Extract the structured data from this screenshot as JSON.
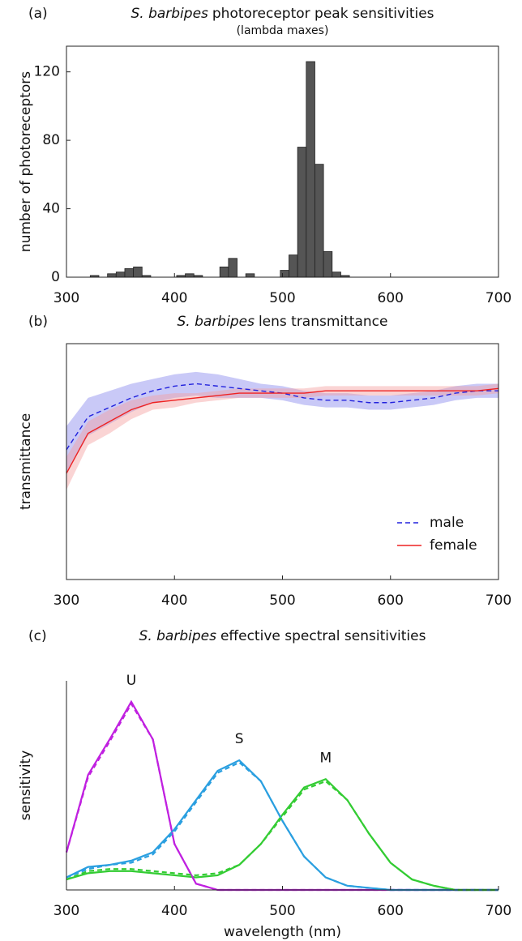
{
  "chart_data": [
    {
      "type": "histogram",
      "panel": "(a)",
      "title_italic": "S. barbipes",
      "title": "photoreceptor peak sensitivities",
      "subtitle": "(lambda maxes)",
      "ylabel": "number of photoreceptors",
      "color": "#555555",
      "bins": [
        322,
        330,
        338,
        346,
        354,
        362,
        370,
        378,
        386,
        394,
        402,
        410,
        418,
        426,
        434,
        442,
        450,
        458,
        466,
        474,
        482,
        490,
        498,
        506,
        514,
        522,
        530,
        538,
        546,
        554,
        562
      ],
      "counts": [
        1,
        0,
        2,
        3,
        5,
        6,
        1,
        0,
        0,
        0,
        1,
        2,
        1,
        0,
        0,
        6,
        11,
        0,
        2,
        0,
        0,
        0,
        4,
        13,
        76,
        126,
        66,
        15,
        3,
        1
      ],
      "xlim": [
        300,
        700
      ],
      "xticks": [
        300,
        400,
        500,
        600,
        700
      ],
      "ylim": [
        0,
        135
      ],
      "yticks": [
        0,
        40,
        80,
        120
      ]
    },
    {
      "type": "line",
      "panel": "(b)",
      "title_italic": "S. barbipes",
      "title": "lens transmittance",
      "ylabel": "transmittance",
      "legend": "lower right",
      "x": [
        300,
        320,
        340,
        360,
        380,
        400,
        420,
        440,
        460,
        480,
        500,
        520,
        540,
        560,
        580,
        600,
        620,
        640,
        660,
        680,
        700
      ],
      "series": [
        {
          "name": "male",
          "color": "#2222dd",
          "band_color": "#8888ee",
          "dashed": true,
          "values": [
            0.55,
            0.69,
            0.73,
            0.77,
            0.8,
            0.82,
            0.83,
            0.82,
            0.81,
            0.8,
            0.79,
            0.77,
            0.76,
            0.76,
            0.75,
            0.75,
            0.76,
            0.77,
            0.79,
            0.8,
            0.8
          ],
          "error": [
            0.1,
            0.08,
            0.07,
            0.06,
            0.05,
            0.05,
            0.05,
            0.05,
            0.04,
            0.03,
            0.03,
            0.03,
            0.03,
            0.03,
            0.03,
            0.03,
            0.03,
            0.03,
            0.03,
            0.03,
            0.03
          ]
        },
        {
          "name": "female",
          "color": "#ee2222",
          "band_color": "#f5a0a0",
          "dashed": false,
          "values": [
            0.45,
            0.62,
            0.67,
            0.72,
            0.75,
            0.76,
            0.77,
            0.78,
            0.79,
            0.79,
            0.79,
            0.79,
            0.8,
            0.8,
            0.8,
            0.8,
            0.8,
            0.8,
            0.8,
            0.8,
            0.81
          ],
          "error": [
            0.07,
            0.05,
            0.05,
            0.04,
            0.03,
            0.03,
            0.02,
            0.02,
            0.02,
            0.02,
            0.02,
            0.02,
            0.02,
            0.02,
            0.02,
            0.02,
            0.02,
            0.02,
            0.02,
            0.02,
            0.02
          ]
        }
      ],
      "xlim": [
        300,
        700
      ],
      "xticks": [
        300,
        400,
        500,
        600,
        700
      ],
      "ylim": [
        0,
        1
      ]
    },
    {
      "type": "line",
      "panel": "(c)",
      "title_italic": "S. barbipes",
      "title": "effective spectral sensitivities",
      "ylabel": "sensitivity",
      "xlabel": "wavelength (nm)",
      "x": [
        300,
        320,
        340,
        360,
        380,
        400,
        420,
        440,
        460,
        480,
        500,
        520,
        540,
        560,
        580,
        600,
        620,
        640,
        660,
        680,
        700
      ],
      "series": [
        {
          "name": "U",
          "color": "#c020e0",
          "dashed": false,
          "values": [
            0.18,
            0.55,
            0.72,
            0.9,
            0.72,
            0.22,
            0.03,
            0,
            0,
            0,
            0,
            0,
            0,
            0,
            0,
            0,
            0,
            0,
            0,
            0,
            0
          ]
        },
        {
          "name": "S",
          "color": "#2a9fe0",
          "dashed": false,
          "values": [
            0.06,
            0.11,
            0.12,
            0.14,
            0.18,
            0.29,
            0.43,
            0.57,
            0.62,
            0.52,
            0.33,
            0.16,
            0.06,
            0.02,
            0.01,
            0,
            0,
            0,
            0,
            0,
            0
          ]
        },
        {
          "name": "M",
          "color": "#33cc33",
          "dashed": false,
          "values": [
            0.05,
            0.08,
            0.09,
            0.09,
            0.08,
            0.07,
            0.06,
            0.07,
            0.12,
            0.22,
            0.36,
            0.49,
            0.53,
            0.43,
            0.27,
            0.13,
            0.05,
            0.02,
            0,
            0,
            0
          ]
        },
        {
          "color": "#c020e0",
          "dashed": true,
          "values": [
            0.18,
            0.54,
            0.71,
            0.89,
            0.72,
            0.22,
            0.03,
            0,
            0,
            0,
            0,
            0,
            0,
            0,
            0,
            0,
            0,
            0,
            0,
            0,
            0
          ]
        },
        {
          "color": "#2a9fe0",
          "dashed": true,
          "values": [
            0.06,
            0.1,
            0.12,
            0.13,
            0.17,
            0.28,
            0.42,
            0.56,
            0.61,
            0.52,
            0.33,
            0.16,
            0.06,
            0.02,
            0.01,
            0,
            0,
            0,
            0,
            0,
            0
          ]
        },
        {
          "color": "#33cc33",
          "dashed": true,
          "values": [
            0.05,
            0.09,
            0.1,
            0.1,
            0.09,
            0.08,
            0.07,
            0.08,
            0.12,
            0.22,
            0.35,
            0.48,
            0.52,
            0.43,
            0.27,
            0.13,
            0.05,
            0.02,
            0,
            0,
            0
          ]
        }
      ],
      "xlim": [
        300,
        700
      ],
      "xticks": [
        300,
        400,
        500,
        600,
        700
      ],
      "ylim": [
        0,
        1
      ]
    }
  ]
}
